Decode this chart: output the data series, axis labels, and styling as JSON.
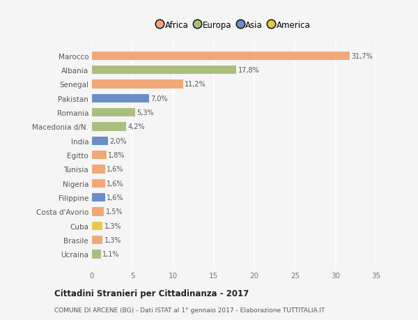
{
  "categories": [
    "Ucraina",
    "Brasile",
    "Cuba",
    "Costa d'Avorio",
    "Filippine",
    "Nigeria",
    "Tunisia",
    "Egitto",
    "India",
    "Macedonia d/N.",
    "Romania",
    "Pakistan",
    "Senegal",
    "Albania",
    "Marocco"
  ],
  "values": [
    1.1,
    1.3,
    1.3,
    1.5,
    1.6,
    1.6,
    1.6,
    1.8,
    2.0,
    4.2,
    5.3,
    7.0,
    11.2,
    17.8,
    31.7
  ],
  "colors": [
    "#aabf7e",
    "#f0a878",
    "#e8c84a",
    "#f0a878",
    "#6b8ec8",
    "#f0a878",
    "#f0a878",
    "#f0a878",
    "#6b8ec8",
    "#aabf7e",
    "#aabf7e",
    "#6b8ec8",
    "#f0a878",
    "#aabf7e",
    "#f0a878"
  ],
  "bar_labels": [
    "1,1%",
    "1,3%",
    "1,3%",
    "1,5%",
    "1,6%",
    "1,6%",
    "1,6%",
    "1,8%",
    "2,0%",
    "4,2%",
    "5,3%",
    "7,0%",
    "11,2%",
    "17,8%",
    "31,7%"
  ],
  "legend": [
    {
      "label": "Africa",
      "color": "#f0a878"
    },
    {
      "label": "Europa",
      "color": "#aabf7e"
    },
    {
      "label": "Asia",
      "color": "#6b8ec8"
    },
    {
      "label": "America",
      "color": "#e8c84a"
    }
  ],
  "xlim": [
    0,
    35
  ],
  "xticks": [
    0,
    5,
    10,
    15,
    20,
    25,
    30,
    35
  ],
  "title": "Cittadini Stranieri per Cittadinanza - 2017",
  "subtitle": "COMUNE DI ARCENE (BG) - Dati ISTAT al 1° gennaio 2017 - Elaborazione TUTTITALIA.IT",
  "bg_color": "#f5f5f5",
  "plot_bg_color": "#f5f5f5",
  "grid_color": "#ffffff"
}
